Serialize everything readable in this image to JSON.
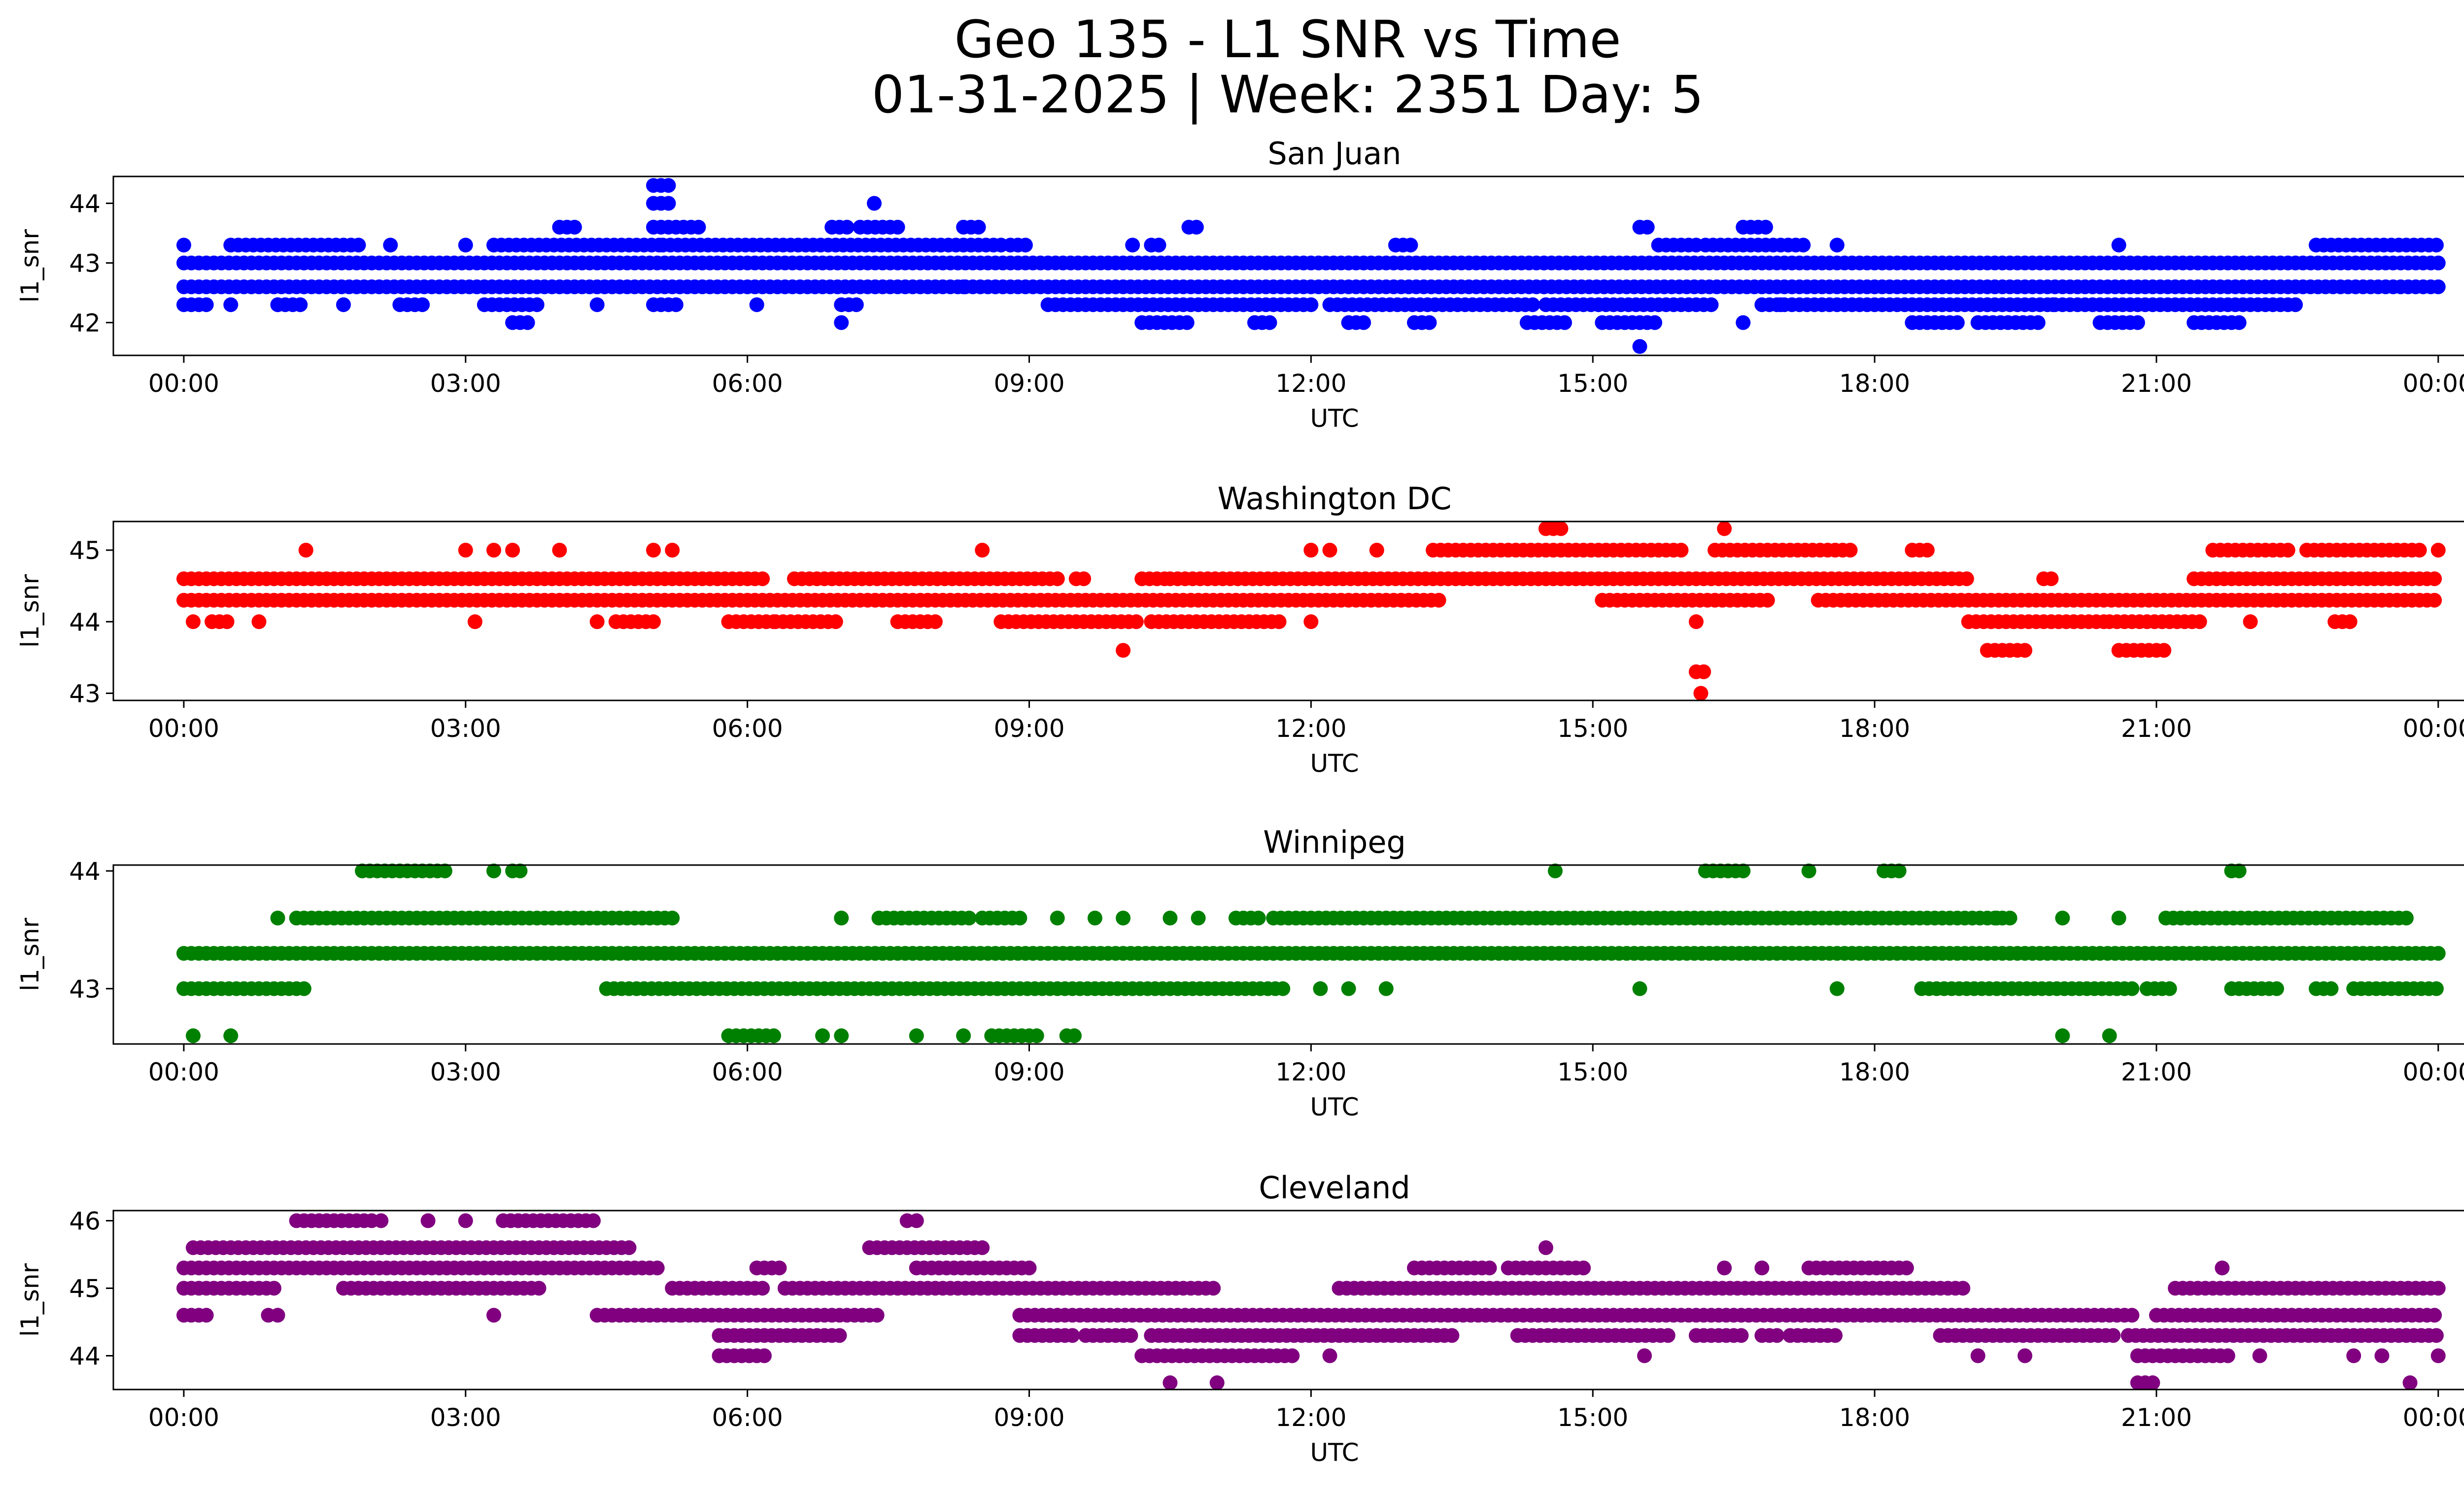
{
  "figure": {
    "title_line1": "Geo 135 - L1 SNR vs Time",
    "title_line2": "01-31-2025 | Week: 2351 Day: 5"
  },
  "chart_data": [
    {
      "type": "scatter",
      "title": "San Juan",
      "xlabel": "UTC",
      "ylabel": "l1_snr",
      "color": "#0000ff",
      "xlim": [
        -0.75,
        25.25
      ],
      "ylim": [
        41.45,
        44.45
      ],
      "xticks": [
        "00:00",
        "03:00",
        "06:00",
        "09:00",
        "12:00",
        "15:00",
        "18:00",
        "21:00",
        "00:00"
      ],
      "yticks": [
        42,
        43,
        44
      ],
      "levels": [
        {
          "y": 42.6,
          "segments": [
            [
              0.0,
              24.0
            ]
          ]
        },
        {
          "y": 43.0,
          "segments": [
            [
              0.0,
              24.0
            ]
          ]
        },
        {
          "y": 42.3,
          "segments": [
            [
              0.0,
              0.3
            ],
            [
              1.0,
              1.3
            ],
            [
              2.3,
              2.6
            ],
            [
              3.2,
              3.8
            ],
            [
              5.0,
              5.3
            ],
            [
              7.0,
              7.2
            ],
            [
              9.2,
              12.0
            ],
            [
              12.2,
              14.4
            ],
            [
              14.5,
              16.3
            ],
            [
              16.8,
              22.5
            ]
          ]
        },
        {
          "y": 43.3,
          "segments": [
            [
              0.5,
              1.9
            ],
            [
              3.3,
              5.1
            ],
            [
              5.1,
              8.7
            ],
            [
              8.8,
              9.0
            ],
            [
              10.3,
              10.4
            ],
            [
              12.9,
              13.1
            ],
            [
              15.7,
              16.1
            ],
            [
              16.2,
              17.3
            ],
            [
              22.7,
              24.0
            ]
          ]
        },
        {
          "y": 42.0,
          "segments": [
            [
              3.5,
              3.7
            ],
            [
              7.0,
              7.05
            ],
            [
              10.2,
              10.7
            ],
            [
              11.4,
              11.6
            ],
            [
              12.4,
              12.6
            ],
            [
              13.1,
              13.3
            ],
            [
              14.3,
              14.7
            ],
            [
              15.1,
              15.7
            ],
            [
              18.4,
              18.9
            ],
            [
              19.1,
              19.8
            ],
            [
              20.4,
              20.8
            ],
            [
              21.4,
              21.9
            ]
          ]
        },
        {
          "y": 43.6,
          "segments": [
            [
              4.0,
              4.2
            ],
            [
              5.0,
              5.5
            ],
            [
              6.9,
              7.1
            ],
            [
              7.2,
              7.6
            ],
            [
              8.3,
              8.5
            ],
            [
              10.7,
              10.8
            ],
            [
              15.5,
              15.6
            ],
            [
              16.6,
              16.9
            ]
          ]
        },
        {
          "y": 44.0,
          "segments": [
            [
              5.0,
              5.2
            ],
            [
              7.35,
              7.4
            ]
          ]
        },
        {
          "y": 44.3,
          "segments": [
            [
              5.0,
              5.2
            ]
          ]
        }
      ],
      "points": [
        {
          "x": 0.0,
          "y": 43.3
        },
        {
          "x": 0.5,
          "y": 42.3
        },
        {
          "x": 1.0,
          "y": 42.3
        },
        {
          "x": 1.7,
          "y": 42.3
        },
        {
          "x": 2.2,
          "y": 43.3
        },
        {
          "x": 3.0,
          "y": 43.3
        },
        {
          "x": 4.4,
          "y": 42.3
        },
        {
          "x": 6.1,
          "y": 42.3
        },
        {
          "x": 8.3,
          "y": 42.6
        },
        {
          "x": 10.1,
          "y": 43.3
        },
        {
          "x": 11.4,
          "y": 42.0
        },
        {
          "x": 12.4,
          "y": 43.0
        },
        {
          "x": 15.5,
          "y": 41.6
        },
        {
          "x": 16.6,
          "y": 42.0
        },
        {
          "x": 17.0,
          "y": 42.3
        },
        {
          "x": 17.6,
          "y": 43.3
        },
        {
          "x": 19.2,
          "y": 42.3
        },
        {
          "x": 19.9,
          "y": 42.3
        },
        {
          "x": 20.6,
          "y": 43.3
        }
      ]
    },
    {
      "type": "scatter",
      "title": "Washington DC",
      "xlabel": "UTC",
      "ylabel": "l1_snr",
      "color": "#ff0000",
      "xlim": [
        -0.75,
        25.25
      ],
      "ylim": [
        42.9,
        45.4
      ],
      "xticks": [
        "00:00",
        "03:00",
        "06:00",
        "09:00",
        "12:00",
        "15:00",
        "18:00",
        "21:00",
        "00:00"
      ],
      "yticks": [
        43,
        44,
        45
      ],
      "levels": [
        {
          "y": 44.3,
          "segments": [
            [
              0.0,
              13.4
            ],
            [
              15.1,
              16.9
            ],
            [
              17.4,
              24.0
            ]
          ]
        },
        {
          "y": 44.6,
          "segments": [
            [
              0.0,
              6.2
            ],
            [
              6.5,
              9.3
            ],
            [
              9.5,
              9.6
            ],
            [
              10.2,
              10.5
            ],
            [
              10.5,
              19.0
            ],
            [
              19.8,
              19.9
            ],
            [
              21.4,
              24.0
            ]
          ]
        },
        {
          "y": 44.0,
          "segments": [
            [
              0.3,
              0.5
            ],
            [
              4.6,
              5.0
            ],
            [
              5.8,
              6.3
            ],
            [
              6.3,
              7.0
            ],
            [
              7.6,
              8.0
            ],
            [
              8.7,
              10.2
            ],
            [
              10.3,
              11.7
            ],
            [
              19.0,
              20.5
            ],
            [
              20.5,
              21.5
            ],
            [
              22.9,
              23.1
            ]
          ]
        },
        {
          "y": 45.0,
          "segments": [
            [
              13.3,
              16.0
            ],
            [
              16.3,
              17.8
            ],
            [
              18.4,
              18.6
            ],
            [
              21.6,
              22.4
            ],
            [
              22.6,
              23.8
            ]
          ]
        },
        {
          "y": 43.6,
          "segments": [
            [
              19.2,
              19.6
            ],
            [
              20.6,
              21.1
            ]
          ]
        },
        {
          "y": 45.3,
          "segments": [
            [
              14.5,
              14.7
            ]
          ]
        },
        {
          "y": 43.3,
          "segments": [
            [
              16.1,
              16.2
            ]
          ]
        }
      ],
      "points": [
        {
          "x": 1.3,
          "y": 45.0
        },
        {
          "x": 3.0,
          "y": 45.0
        },
        {
          "x": 3.3,
          "y": 45.0
        },
        {
          "x": 3.5,
          "y": 45.0
        },
        {
          "x": 4.0,
          "y": 45.0
        },
        {
          "x": 5.0,
          "y": 45.0
        },
        {
          "x": 5.2,
          "y": 45.0
        },
        {
          "x": 8.5,
          "y": 45.0
        },
        {
          "x": 0.1,
          "y": 44.0
        },
        {
          "x": 0.8,
          "y": 44.0
        },
        {
          "x": 3.1,
          "y": 44.0
        },
        {
          "x": 4.4,
          "y": 44.0
        },
        {
          "x": 10.0,
          "y": 43.6
        },
        {
          "x": 12.0,
          "y": 45.0
        },
        {
          "x": 12.2,
          "y": 45.0
        },
        {
          "x": 12.7,
          "y": 45.0
        },
        {
          "x": 12.0,
          "y": 44.0
        },
        {
          "x": 16.4,
          "y": 45.3
        },
        {
          "x": 16.1,
          "y": 44.0
        },
        {
          "x": 16.15,
          "y": 43.0
        },
        {
          "x": 22.0,
          "y": 44.0
        },
        {
          "x": 24.0,
          "y": 45.0
        }
      ]
    },
    {
      "type": "scatter",
      "title": "Winnipeg",
      "xlabel": "UTC",
      "ylabel": "l1_snr",
      "color": "#008000",
      "xlim": [
        -0.75,
        25.25
      ],
      "ylim": [
        42.53,
        44.05
      ],
      "xticks": [
        "00:00",
        "03:00",
        "06:00",
        "09:00",
        "12:00",
        "15:00",
        "18:00",
        "21:00",
        "00:00"
      ],
      "yticks": [
        43,
        44
      ],
      "levels": [
        {
          "y": 43.3,
          "segments": [
            [
              0.0,
              24.0
            ]
          ]
        },
        {
          "y": 43.0,
          "segments": [
            [
              0.0,
              1.3
            ],
            [
              4.5,
              11.7
            ],
            [
              18.5,
              20.8
            ],
            [
              20.9,
              21.2
            ],
            [
              21.8,
              22.3
            ],
            [
              22.7,
              22.9
            ],
            [
              23.1,
              24.0
            ]
          ]
        },
        {
          "y": 43.6,
          "segments": [
            [
              1.2,
              5.2
            ],
            [
              7.4,
              8.4
            ],
            [
              8.5,
              8.9
            ],
            [
              11.2,
              11.5
            ],
            [
              11.6,
              19.5
            ],
            [
              21.1,
              23.7
            ]
          ]
        },
        {
          "y": 44.0,
          "segments": [
            [
              1.9,
              2.8
            ],
            [
              3.5,
              3.6
            ],
            [
              16.2,
              16.6
            ],
            [
              18.1,
              18.3
            ],
            [
              21.8,
              21.9
            ]
          ]
        },
        {
          "y": 42.6,
          "segments": [
            [
              5.8,
              6.3
            ],
            [
              8.6,
              9.1
            ],
            [
              9.4,
              9.5
            ]
          ]
        }
      ],
      "points": [
        {
          "x": 0.1,
          "y": 42.6
        },
        {
          "x": 0.5,
          "y": 42.6
        },
        {
          "x": 1.0,
          "y": 43.6
        },
        {
          "x": 3.3,
          "y": 44.0
        },
        {
          "x": 6.8,
          "y": 42.6
        },
        {
          "x": 7.0,
          "y": 42.6
        },
        {
          "x": 7.8,
          "y": 42.6
        },
        {
          "x": 8.3,
          "y": 42.6
        },
        {
          "x": 7.0,
          "y": 43.6
        },
        {
          "x": 9.3,
          "y": 43.6
        },
        {
          "x": 9.7,
          "y": 43.6
        },
        {
          "x": 10.0,
          "y": 43.6
        },
        {
          "x": 10.5,
          "y": 43.6
        },
        {
          "x": 10.8,
          "y": 43.6
        },
        {
          "x": 12.1,
          "y": 43.0
        },
        {
          "x": 12.4,
          "y": 43.0
        },
        {
          "x": 12.8,
          "y": 43.0
        },
        {
          "x": 14.6,
          "y": 44.0
        },
        {
          "x": 15.5,
          "y": 43.0
        },
        {
          "x": 17.3,
          "y": 44.0
        },
        {
          "x": 17.6,
          "y": 43.0
        },
        {
          "x": 19.3,
          "y": 43.6
        },
        {
          "x": 20.0,
          "y": 43.6
        },
        {
          "x": 20.0,
          "y": 42.6
        },
        {
          "x": 20.5,
          "y": 42.6
        },
        {
          "x": 20.6,
          "y": 43.6
        }
      ]
    },
    {
      "type": "scatter",
      "title": "Cleveland",
      "xlabel": "UTC",
      "ylabel": "l1_snr",
      "color": "#800080",
      "xlim": [
        -0.75,
        25.25
      ],
      "ylim": [
        43.5,
        46.15
      ],
      "xticks": [
        "00:00",
        "03:00",
        "06:00",
        "09:00",
        "12:00",
        "15:00",
        "18:00",
        "21:00",
        "00:00"
      ],
      "yticks": [
        44,
        45,
        46
      ],
      "levels": [
        {
          "y": 45.0,
          "segments": [
            [
              0.0,
              1.0
            ],
            [
              1.7,
              3.8
            ],
            [
              5.2,
              6.2
            ],
            [
              6.4,
              11.0
            ],
            [
              12.3,
              19.0
            ],
            [
              21.2,
              24.0
            ]
          ]
        },
        {
          "y": 45.3,
          "segments": [
            [
              0.0,
              5.1
            ],
            [
              6.1,
              6.4
            ],
            [
              7.8,
              9.0
            ],
            [
              13.1,
              13.9
            ],
            [
              14.1,
              14.9
            ],
            [
              17.3,
              18.4
            ]
          ]
        },
        {
          "y": 45.6,
          "segments": [
            [
              0.1,
              4.8
            ],
            [
              7.3,
              8.5
            ]
          ]
        },
        {
          "y": 44.6,
          "segments": [
            [
              0.0,
              0.3
            ],
            [
              4.4,
              5.3
            ],
            [
              5.3,
              7.4
            ],
            [
              8.9,
              20.8
            ],
            [
              21.0,
              24.0
            ]
          ]
        },
        {
          "y": 44.3,
          "segments": [
            [
              5.7,
              7.0
            ],
            [
              8.9,
              9.5
            ],
            [
              9.6,
              10.1
            ],
            [
              10.3,
              13.5
            ],
            [
              14.2,
              15.8
            ],
            [
              16.1,
              16.6
            ],
            [
              16.8,
              17.0
            ],
            [
              17.1,
              17.6
            ],
            [
              18.7,
              20.6
            ],
            [
              20.7,
              24.0
            ]
          ]
        },
        {
          "y": 44.0,
          "segments": [
            [
              5.7,
              6.2
            ],
            [
              10.2,
              11.8
            ],
            [
              20.8,
              21.8
            ]
          ]
        },
        {
          "y": 46.0,
          "segments": [
            [
              1.2,
              2.0
            ],
            [
              3.4,
              4.4
            ]
          ]
        },
        {
          "y": 43.6,
          "segments": [
            [
              20.8,
              21.0
            ]
          ]
        }
      ],
      "points": [
        {
          "x": 0.9,
          "y": 44.6
        },
        {
          "x": 1.0,
          "y": 44.6
        },
        {
          "x": 2.1,
          "y": 46.0
        },
        {
          "x": 2.6,
          "y": 46.0
        },
        {
          "x": 3.0,
          "y": 46.0
        },
        {
          "x": 3.3,
          "y": 44.6
        },
        {
          "x": 7.7,
          "y": 46.0
        },
        {
          "x": 7.8,
          "y": 46.0
        },
        {
          "x": 10.5,
          "y": 43.6
        },
        {
          "x": 11.0,
          "y": 43.6
        },
        {
          "x": 12.2,
          "y": 44.0
        },
        {
          "x": 14.5,
          "y": 45.6
        },
        {
          "x": 15.55,
          "y": 44.0
        },
        {
          "x": 16.4,
          "y": 45.3
        },
        {
          "x": 16.8,
          "y": 45.3
        },
        {
          "x": 19.1,
          "y": 44.0
        },
        {
          "x": 19.6,
          "y": 44.0
        },
        {
          "x": 21.7,
          "y": 45.3
        },
        {
          "x": 22.1,
          "y": 44.0
        },
        {
          "x": 23.1,
          "y": 44.0
        },
        {
          "x": 23.4,
          "y": 44.0
        },
        {
          "x": 23.7,
          "y": 43.6
        },
        {
          "x": 24.0,
          "y": 44.0
        }
      ]
    }
  ]
}
